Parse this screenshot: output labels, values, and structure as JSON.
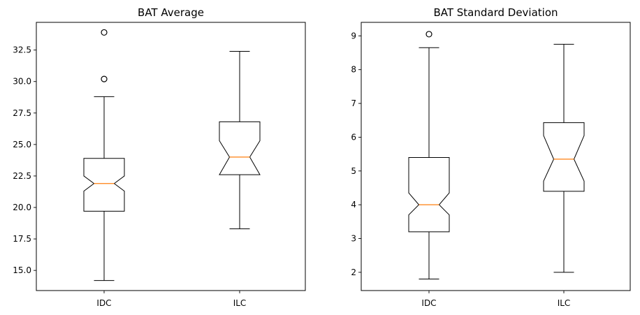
{
  "chart_data": [
    {
      "type": "box",
      "title": "BAT Average",
      "categories": [
        "IDC",
        "ILC"
      ],
      "yticks": [
        15.0,
        17.5,
        20.0,
        22.5,
        25.0,
        27.5,
        30.0,
        32.5
      ],
      "ytick_labels": [
        "15.0",
        "17.5",
        "20.0",
        "22.5",
        "25.0",
        "27.5",
        "30.0",
        "32.5"
      ],
      "boxes": [
        {
          "name": "IDC",
          "whisker_low": 14.2,
          "q1": 19.7,
          "median": 21.9,
          "q3": 23.9,
          "whisker_high": 28.8,
          "notch_low": 21.3,
          "notch_high": 22.5,
          "outliers": [
            30.2,
            33.9
          ]
        },
        {
          "name": "ILC",
          "whisker_low": 18.3,
          "q1": 22.6,
          "median": 24.0,
          "q3": 26.8,
          "whisker_high": 32.4,
          "notch_low": 22.6,
          "notch_high": 25.3,
          "outliers": []
        }
      ]
    },
    {
      "type": "box",
      "title": "BAT Standard Deviation",
      "categories": [
        "IDC",
        "ILC"
      ],
      "yticks": [
        2,
        3,
        4,
        5,
        6,
        7,
        8,
        9
      ],
      "ytick_labels": [
        "2",
        "3",
        "4",
        "5",
        "6",
        "7",
        "8",
        "9"
      ],
      "boxes": [
        {
          "name": "IDC",
          "whisker_low": 1.8,
          "q1": 3.2,
          "median": 4.0,
          "q3": 5.4,
          "whisker_high": 8.65,
          "notch_low": 3.7,
          "notch_high": 4.35,
          "outliers": [
            9.05
          ]
        },
        {
          "name": "ILC",
          "whisker_low": 2.0,
          "q1": 4.4,
          "median": 5.35,
          "q3": 6.43,
          "whisker_high": 8.75,
          "notch_low": 4.7,
          "notch_high": 6.05,
          "outliers": []
        }
      ]
    }
  ],
  "colors": {
    "box": "#000000",
    "median": "#ff7f0e",
    "background": "#ffffff"
  }
}
